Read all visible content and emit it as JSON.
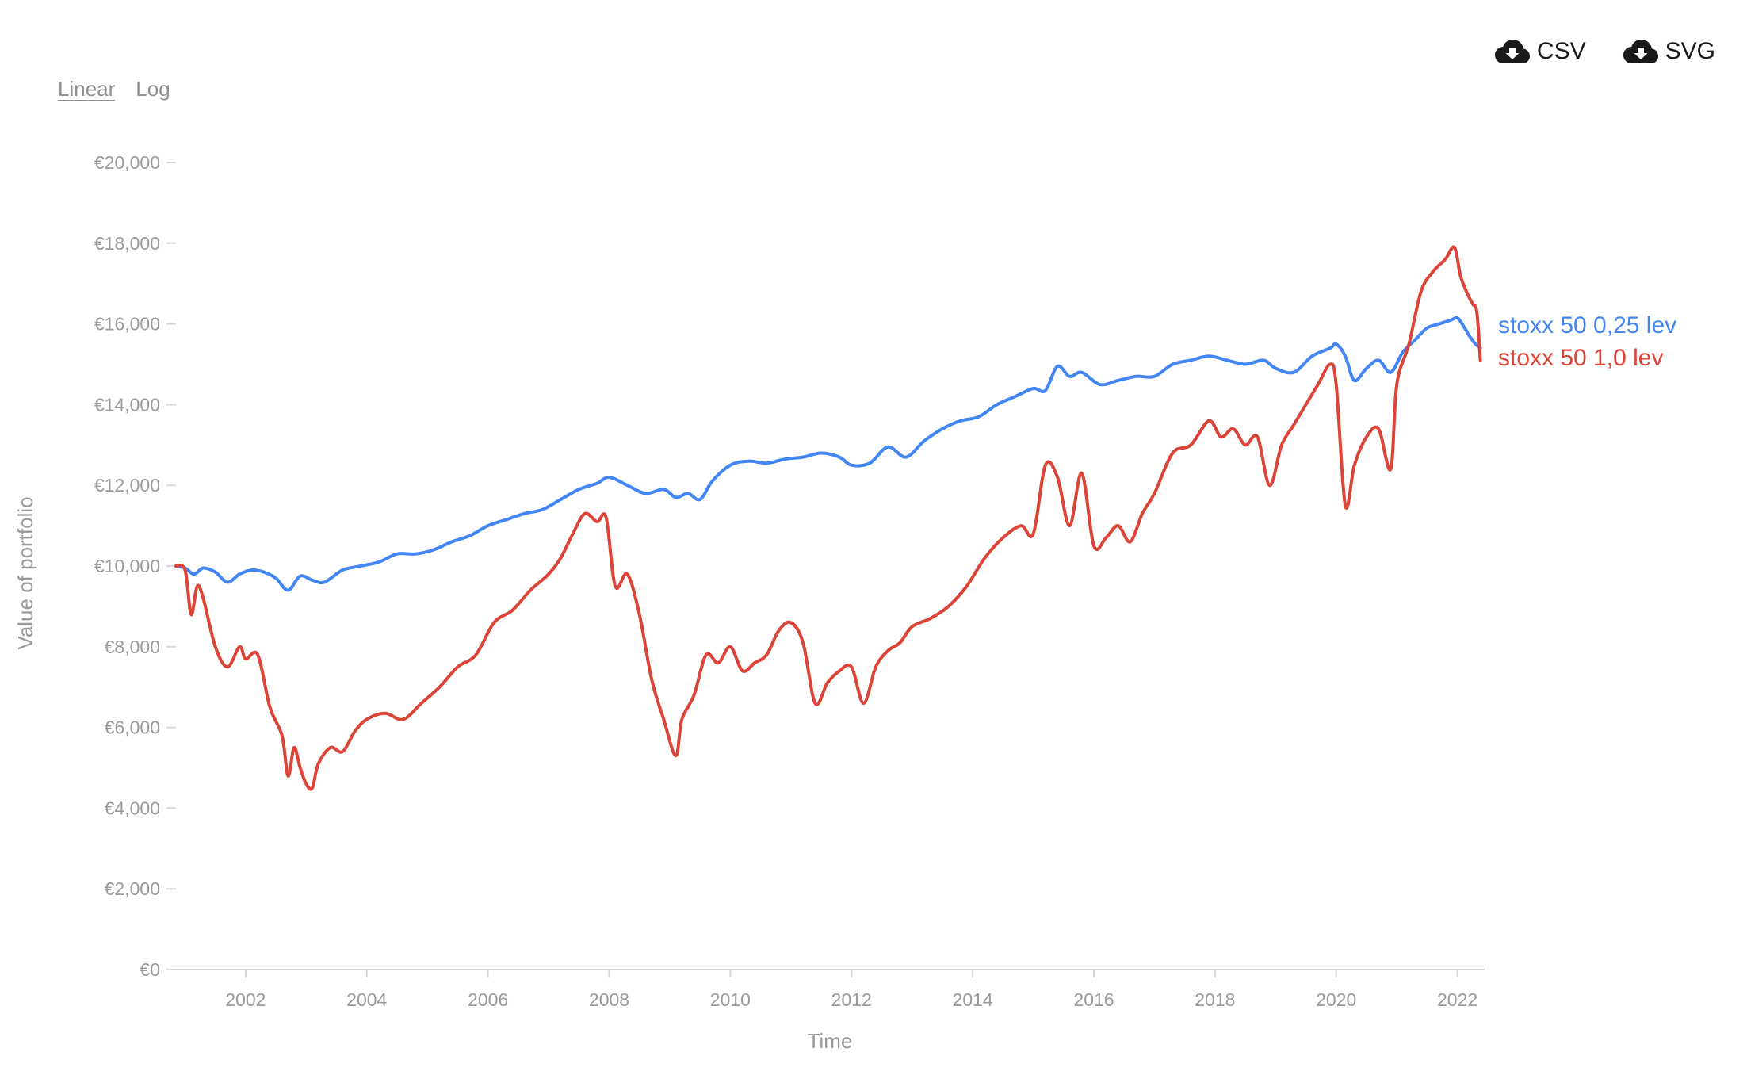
{
  "scale_toggle": {
    "linear_label": "Linear",
    "log_label": "Log",
    "active": "linear"
  },
  "downloads": {
    "csv_label": "CSV",
    "svg_label": "SVG",
    "icon": "cloud-download-icon"
  },
  "colors": {
    "series_1": "#4285f4",
    "series_2": "#db4437",
    "axis": "#d6d6d6",
    "tick_text": "#9a9a9a"
  },
  "chart_data": {
    "type": "line",
    "xlabel": "Time",
    "ylabel": "Value of portfolio",
    "xlim": [
      2000.85,
      2022.45
    ],
    "ylim": [
      0,
      20000
    ],
    "x_ticks": [
      2002,
      2004,
      2006,
      2008,
      2010,
      2012,
      2014,
      2016,
      2018,
      2020,
      2022
    ],
    "x_tick_labels": [
      "2002",
      "2004",
      "2006",
      "2008",
      "2010",
      "2012",
      "2014",
      "2016",
      "2018",
      "2020",
      "2022"
    ],
    "y_ticks": [
      0,
      2000,
      4000,
      6000,
      8000,
      10000,
      12000,
      14000,
      16000,
      18000,
      20000
    ],
    "y_tick_labels": [
      "€0",
      "€2,000",
      "€4,000",
      "€6,000",
      "€8,000",
      "€10,000",
      "€12,000",
      "€14,000",
      "€16,000",
      "€18,000",
      "€20,000"
    ],
    "grid": false,
    "legend": "series labels at right end of lines",
    "series": [
      {
        "name": "stoxx 50 0,25 lev",
        "x": [
          2000.85,
          2001.0,
          2001.15,
          2001.3,
          2001.5,
          2001.7,
          2001.9,
          2002.1,
          2002.3,
          2002.5,
          2002.7,
          2002.9,
          2003.1,
          2003.3,
          2003.6,
          2003.9,
          2004.2,
          2004.5,
          2004.8,
          2005.1,
          2005.4,
          2005.7,
          2006.0,
          2006.3,
          2006.6,
          2006.9,
          2007.2,
          2007.5,
          2007.8,
          2008.0,
          2008.3,
          2008.6,
          2008.9,
          2009.1,
          2009.3,
          2009.5,
          2009.7,
          2010.0,
          2010.3,
          2010.6,
          2010.9,
          2011.2,
          2011.5,
          2011.8,
          2012.0,
          2012.3,
          2012.6,
          2012.9,
          2013.2,
          2013.5,
          2013.8,
          2014.1,
          2014.4,
          2014.7,
          2015.0,
          2015.2,
          2015.4,
          2015.6,
          2015.8,
          2016.1,
          2016.4,
          2016.7,
          2017.0,
          2017.3,
          2017.6,
          2017.9,
          2018.2,
          2018.5,
          2018.8,
          2019.0,
          2019.3,
          2019.6,
          2019.9,
          2020.0,
          2020.15,
          2020.3,
          2020.5,
          2020.7,
          2020.9,
          2021.1,
          2021.3,
          2021.5,
          2021.7,
          2021.9,
          2022.0,
          2022.1,
          2022.2,
          2022.3,
          2022.38
        ],
        "values": [
          10000,
          9950,
          9800,
          9950,
          9850,
          9600,
          9800,
          9900,
          9850,
          9700,
          9400,
          9750,
          9650,
          9600,
          9900,
          10000,
          10100,
          10300,
          10300,
          10400,
          10600,
          10750,
          11000,
          11150,
          11300,
          11400,
          11650,
          11900,
          12050,
          12200,
          12000,
          11800,
          11900,
          11700,
          11800,
          11650,
          12100,
          12500,
          12600,
          12550,
          12650,
          12700,
          12800,
          12700,
          12500,
          12550,
          12950,
          12700,
          13100,
          13400,
          13600,
          13700,
          14000,
          14200,
          14400,
          14350,
          14950,
          14700,
          14800,
          14500,
          14600,
          14700,
          14700,
          15000,
          15100,
          15200,
          15100,
          15000,
          15100,
          14900,
          14800,
          15200,
          15400,
          15500,
          15200,
          14600,
          14900,
          15100,
          14800,
          15300,
          15600,
          15900,
          16000,
          16100,
          16150,
          15950,
          15700,
          15500,
          15400
        ]
      },
      {
        "name": "stoxx 50 1,0 lev",
        "x": [
          2000.85,
          2001.0,
          2001.1,
          2001.2,
          2001.3,
          2001.5,
          2001.7,
          2001.9,
          2002.0,
          2002.2,
          2002.4,
          2002.6,
          2002.7,
          2002.8,
          2002.9,
          2003.0,
          2003.1,
          2003.2,
          2003.4,
          2003.6,
          2003.8,
          2004.0,
          2004.3,
          2004.6,
          2004.9,
          2005.2,
          2005.5,
          2005.8,
          2006.1,
          2006.4,
          2006.7,
          2007.0,
          2007.2,
          2007.4,
          2007.6,
          2007.8,
          2007.95,
          2008.1,
          2008.3,
          2008.5,
          2008.7,
          2008.9,
          2009.1,
          2009.2,
          2009.4,
          2009.6,
          2009.8,
          2010.0,
          2010.2,
          2010.4,
          2010.6,
          2010.8,
          2011.0,
          2011.2,
          2011.4,
          2011.6,
          2011.8,
          2012.0,
          2012.2,
          2012.4,
          2012.6,
          2012.8,
          2013.0,
          2013.3,
          2013.6,
          2013.9,
          2014.2,
          2014.5,
          2014.8,
          2015.0,
          2015.2,
          2015.4,
          2015.6,
          2015.8,
          2016.0,
          2016.2,
          2016.4,
          2016.6,
          2016.8,
          2017.0,
          2017.3,
          2017.6,
          2017.9,
          2018.1,
          2018.3,
          2018.5,
          2018.7,
          2018.9,
          2019.1,
          2019.3,
          2019.5,
          2019.7,
          2019.9,
          2020.0,
          2020.15,
          2020.3,
          2020.5,
          2020.7,
          2020.9,
          2021.0,
          2021.2,
          2021.4,
          2021.6,
          2021.8,
          2021.95,
          2022.05,
          2022.15,
          2022.25,
          2022.32,
          2022.38
        ],
        "values": [
          10000,
          9900,
          8800,
          9500,
          9200,
          8000,
          7500,
          8000,
          7700,
          7800,
          6500,
          5800,
          4800,
          5500,
          5000,
          4600,
          4500,
          5100,
          5500,
          5400,
          5900,
          6200,
          6350,
          6200,
          6600,
          7000,
          7500,
          7800,
          8600,
          8900,
          9400,
          9800,
          10200,
          10800,
          11300,
          11100,
          11200,
          9500,
          9800,
          8800,
          7200,
          6200,
          5300,
          6200,
          6800,
          7800,
          7600,
          8000,
          7400,
          7600,
          7800,
          8400,
          8600,
          8100,
          6600,
          7100,
          7400,
          7500,
          6600,
          7500,
          7900,
          8100,
          8500,
          8700,
          9000,
          9500,
          10200,
          10700,
          11000,
          10800,
          12500,
          12200,
          11000,
          12300,
          10500,
          10700,
          11000,
          10600,
          11300,
          11800,
          12800,
          13000,
          13600,
          13200,
          13400,
          13000,
          13200,
          12000,
          13000,
          13500,
          14000,
          14500,
          15000,
          14500,
          11500,
          12500,
          13200,
          13400,
          12400,
          14500,
          15500,
          16800,
          17300,
          17600,
          17900,
          17200,
          16800,
          16500,
          16300,
          15100
        ]
      }
    ]
  }
}
